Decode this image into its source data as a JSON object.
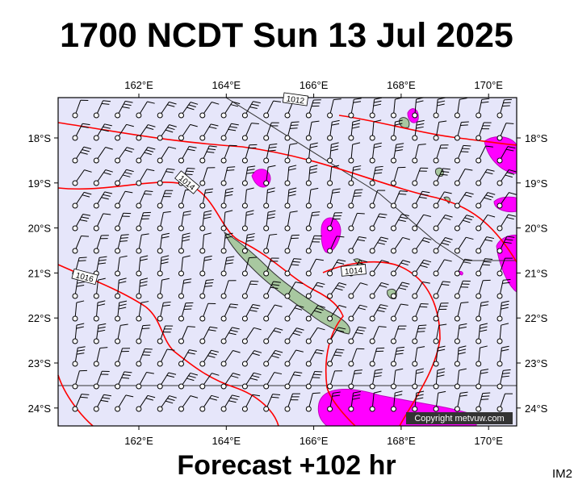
{
  "header": {
    "title": "1700 NCDT Sun 13 Jul 2025"
  },
  "map": {
    "longitude_labels": [
      "162°E",
      "164°E",
      "166°E",
      "168°E",
      "170°E"
    ],
    "latitude_labels": [
      "18°S",
      "19°S",
      "20°S",
      "21°S",
      "22°S",
      "23°S",
      "24°S"
    ],
    "isobar_labels": [
      "1012",
      "1014",
      "1014",
      "1016"
    ],
    "copyright": "Copyright metvuw.com"
  },
  "footer": {
    "forecast": "Forecast +102 hr",
    "code": "IM2"
  }
}
